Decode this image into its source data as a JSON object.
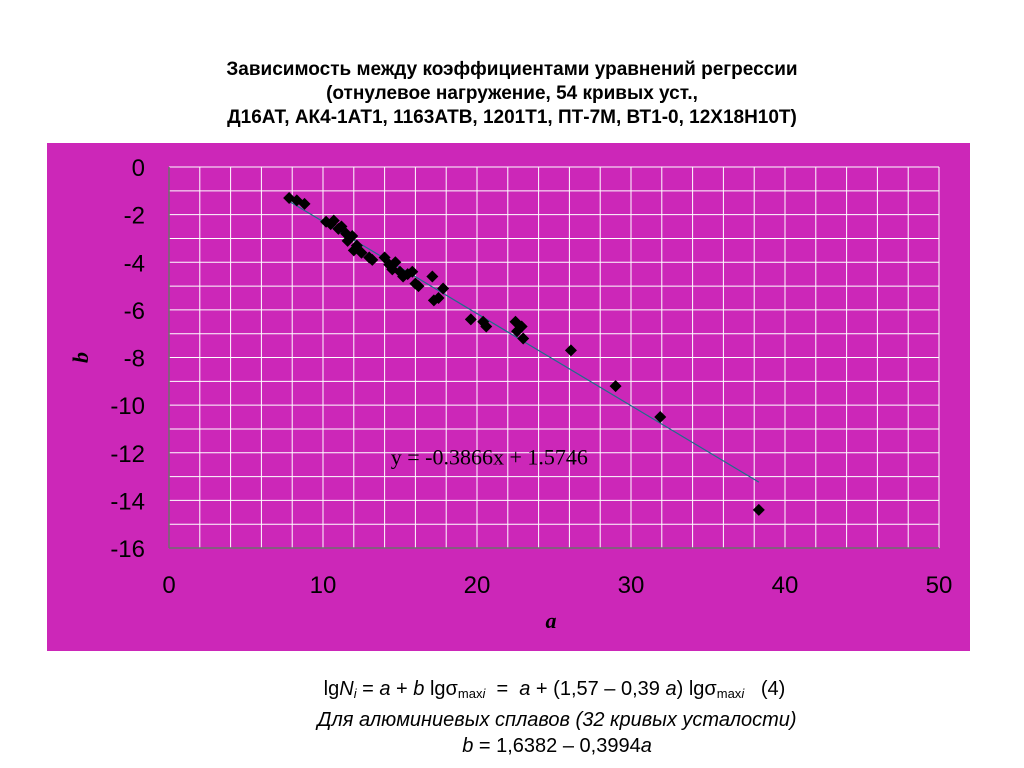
{
  "title_lines": [
    "Зависимость между коэффициентами уравнений регрессии",
    "(отнулевое нагружение, 54 кривых уст.,",
    "Д16АТ, АК4-1АТ1, 1163АТВ, 1201Т1, ПТ-7М, ВТ1-0, 12Х18Н10Т)"
  ],
  "chart_data": {
    "type": "scatter",
    "xlabel": "a",
    "ylabel": "b",
    "xlim": [
      0,
      50
    ],
    "ylim": [
      -16,
      0
    ],
    "x_ticks": [
      "0",
      "10",
      "20",
      "30",
      "40",
      "50"
    ],
    "y_ticks": [
      "0",
      "-2",
      "-4",
      "-6",
      "-8",
      "-10",
      "-12",
      "-14",
      "-16"
    ],
    "x_minor_step": 2,
    "y_minor_step": 1,
    "grid": true,
    "legend": "none",
    "trendline": {
      "label": "y = -0.3866x + 1.5746",
      "slope": -0.3866,
      "intercept": 1.5746,
      "x_range": [
        7.7,
        38.3
      ]
    },
    "points": [
      [
        7.8,
        -1.3
      ],
      [
        8.3,
        -1.4
      ],
      [
        8.8,
        -1.55
      ],
      [
        10.2,
        -2.3
      ],
      [
        10.5,
        -2.4
      ],
      [
        10.7,
        -2.25
      ],
      [
        11.0,
        -2.6
      ],
      [
        11.2,
        -2.5
      ],
      [
        11.5,
        -2.8
      ],
      [
        11.6,
        -3.1
      ],
      [
        11.9,
        -2.9
      ],
      [
        12.0,
        -3.5
      ],
      [
        12.2,
        -3.3
      ],
      [
        12.5,
        -3.6
      ],
      [
        13.0,
        -3.8
      ],
      [
        13.2,
        -3.9
      ],
      [
        14.0,
        -3.8
      ],
      [
        14.3,
        -4.1
      ],
      [
        14.5,
        -4.3
      ],
      [
        14.7,
        -4.0
      ],
      [
        15.0,
        -4.4
      ],
      [
        15.2,
        -4.6
      ],
      [
        15.5,
        -4.5
      ],
      [
        15.8,
        -4.4
      ],
      [
        16.0,
        -4.9
      ],
      [
        16.2,
        -5.0
      ],
      [
        17.1,
        -4.6
      ],
      [
        17.2,
        -5.6
      ],
      [
        17.5,
        -5.5
      ],
      [
        17.8,
        -5.1
      ],
      [
        19.6,
        -6.4
      ],
      [
        20.4,
        -6.5
      ],
      [
        20.6,
        -6.7
      ],
      [
        22.5,
        -6.5
      ],
      [
        22.6,
        -6.9
      ],
      [
        22.9,
        -6.7
      ],
      [
        23.0,
        -7.2
      ],
      [
        26.1,
        -7.7
      ],
      [
        29.0,
        -9.2
      ],
      [
        31.9,
        -10.5
      ],
      [
        38.3,
        -14.4
      ]
    ],
    "colors": {
      "plot_bg": "#cc27b8",
      "grid": "#ffffff",
      "marker": "#000000",
      "trendline": "#1f6f8b"
    }
  },
  "formula": {
    "eq4_label": "(4)",
    "caption": "Для алюминиевых сплавов (32 кривых усталости)",
    "b_eq": "b = 1,6382 – 0,3994a"
  }
}
